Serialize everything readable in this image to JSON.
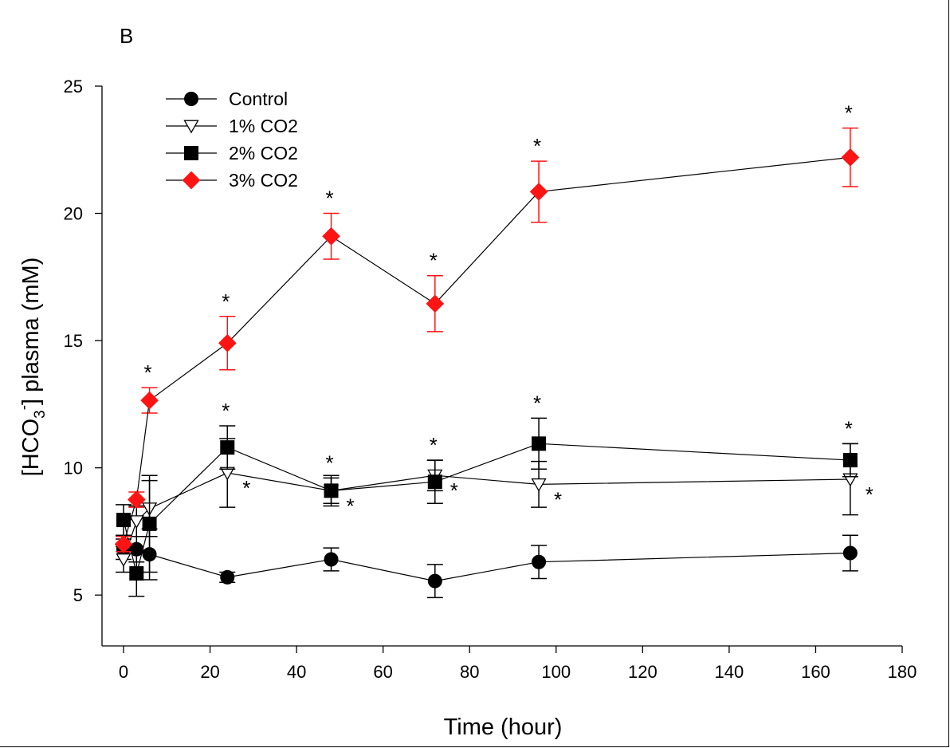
{
  "chart_data": {
    "type": "line",
    "panel_label": "B",
    "xlabel": "Time (hour)",
    "ylabel": {
      "prefix": "[HCO",
      "sub": "3",
      "sup": "-",
      "suffix": "] plasma (mM)"
    },
    "xlim": [
      0,
      180
    ],
    "ylim": [
      3,
      25
    ],
    "xticks": [
      0,
      20,
      40,
      60,
      80,
      100,
      120,
      140,
      160,
      180
    ],
    "yticks": [
      5,
      10,
      15,
      20,
      25
    ],
    "legend_position": "top-left",
    "significance_marker": "*",
    "series": [
      {
        "name": "Control",
        "marker": "circle",
        "color": "#000000",
        "x": [
          0,
          3,
          6,
          24,
          48,
          72,
          96,
          168
        ],
        "y": [
          6.8,
          6.8,
          6.6,
          5.7,
          6.4,
          5.55,
          6.3,
          6.65
        ],
        "err": [
          0.4,
          0.5,
          1.0,
          0.2,
          0.45,
          0.65,
          0.65,
          0.7
        ],
        "significant_x": []
      },
      {
        "name": "1% CO2",
        "marker": "triangle-down-open",
        "color": "#000000",
        "x": [
          0,
          3,
          6,
          24,
          48,
          72,
          96,
          168
        ],
        "y": [
          6.4,
          7.9,
          8.4,
          9.8,
          9.1,
          9.7,
          9.35,
          9.55
        ],
        "err": [
          0.5,
          0.6,
          1.1,
          1.35,
          0.6,
          0.6,
          0.9,
          1.4
        ],
        "significant_x": [
          24,
          48,
          72,
          96,
          168
        ]
      },
      {
        "name": "2% CO2",
        "marker": "square",
        "color": "#000000",
        "x": [
          0,
          3,
          6,
          24,
          48,
          72,
          96,
          168
        ],
        "y": [
          7.95,
          5.85,
          7.8,
          10.8,
          9.1,
          9.45,
          10.95,
          10.3
        ],
        "err": [
          0.6,
          0.9,
          1.9,
          0.85,
          0.5,
          0.85,
          1.0,
          0.65
        ],
        "significant_x": [
          24,
          48,
          72,
          96,
          168
        ]
      },
      {
        "name": "3% CO2",
        "marker": "diamond",
        "color": "#ff1414",
        "x": [
          0,
          3,
          6,
          24,
          48,
          72,
          96,
          168
        ],
        "y": [
          7.0,
          8.75,
          12.65,
          14.9,
          19.1,
          16.45,
          20.85,
          22.2
        ],
        "err": [
          0.3,
          0.3,
          0.5,
          1.05,
          0.9,
          1.1,
          1.2,
          1.15
        ],
        "significant_x": [
          6,
          24,
          48,
          72,
          96,
          168
        ]
      }
    ]
  }
}
